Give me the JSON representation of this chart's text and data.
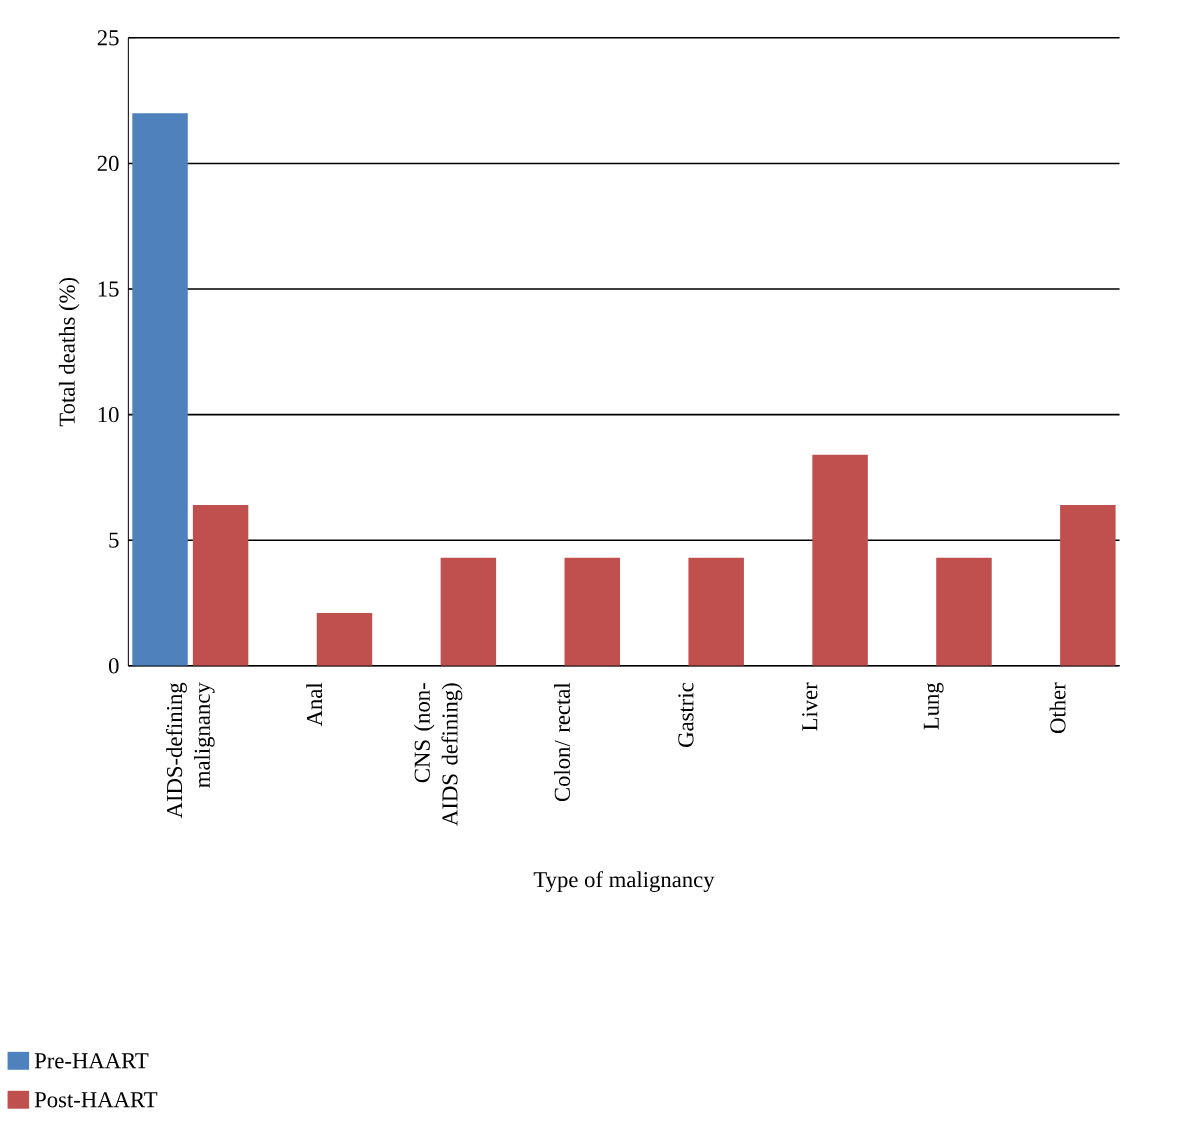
{
  "chart_data": {
    "type": "bar",
    "xlabel": "Type of malignancy",
    "ylabel": "Total deaths (%)",
    "categories": [
      "AIDS-defining malignancy",
      "Anal",
      "CNS (non-AIDS defining)",
      "Colon/ rectal",
      "Gastric",
      "Liver",
      "Lung",
      "Other"
    ],
    "series": [
      {
        "name": "Pre-HAART",
        "color": "#4f81bd",
        "values": [
          22,
          0,
          0,
          0,
          0,
          0,
          0,
          0
        ]
      },
      {
        "name": "Post-HAART",
        "color": "#c0504d",
        "values": [
          6.4,
          2.1,
          4.3,
          4.3,
          4.3,
          8.4,
          4.3,
          6.4
        ]
      }
    ],
    "ylim": [
      0,
      25
    ],
    "yticks": [
      0,
      5,
      10,
      15,
      20,
      25
    ],
    "grid": "y",
    "legend": "bottom left"
  }
}
